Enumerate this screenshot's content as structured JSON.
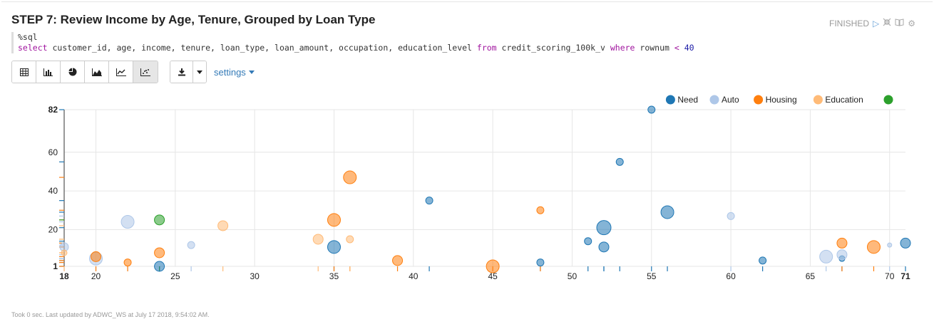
{
  "paragraph": {
    "title": "STEP 7: Review Income by Age, Tenure, Grouped by Loan Type",
    "status": "FINISHED",
    "code_line1": "%sql",
    "code_line2": {
      "select_kw": "select",
      "columns": " customer_id, age, income, tenure, loan_type, loan_amount, occupation, education_level ",
      "from_kw": "from",
      "table": " credit_scoring_100k_v ",
      "where_kw": "where",
      "cond": " rownum ",
      "op": "<",
      "value": " 40"
    },
    "settings_label": "settings",
    "footer": "Took 0 sec. Last updated by ADWC_WS at July 17 2018, 9:54:02 AM."
  },
  "toolbar_icons": [
    "table-icon",
    "bar-chart-icon",
    "pie-chart-icon",
    "area-chart-icon",
    "line-chart-icon",
    "scatter-chart-icon"
  ],
  "colors": {
    "Need": "#1f77b4",
    "Auto": "#aec7e8",
    "Housing": "#ff7f0e",
    "Education": "#ffbb78",
    "Fifth": "#2ca02c",
    "accent": "#337ab7"
  },
  "chart_data": {
    "type": "scatter",
    "xlim": [
      18,
      71
    ],
    "ylim": [
      1,
      82
    ],
    "x_ticks": [
      18,
      20,
      25,
      30,
      35,
      40,
      45,
      50,
      55,
      60,
      65,
      70,
      71
    ],
    "y_ticks": [
      1,
      20,
      40,
      60,
      82
    ],
    "legend_position": "top-right",
    "series": [
      {
        "name": "Need",
        "color": "#1f77b4",
        "points": [
          {
            "x": 24,
            "y": 1,
            "r": 7
          },
          {
            "x": 35,
            "y": 11,
            "r": 9
          },
          {
            "x": 41,
            "y": 35,
            "r": 5
          },
          {
            "x": 48,
            "y": 3,
            "r": 5
          },
          {
            "x": 51,
            "y": 14,
            "r": 5
          },
          {
            "x": 52,
            "y": 21,
            "r": 10
          },
          {
            "x": 52,
            "y": 11,
            "r": 7
          },
          {
            "x": 53,
            "y": 55,
            "r": 5
          },
          {
            "x": 55,
            "y": 82,
            "r": 5
          },
          {
            "x": 56,
            "y": 29,
            "r": 9
          },
          {
            "x": 62,
            "y": 4,
            "r": 5
          },
          {
            "x": 67,
            "y": 5,
            "r": 4
          },
          {
            "x": 71,
            "y": 13,
            "r": 7
          }
        ]
      },
      {
        "name": "Auto",
        "color": "#aec7e8",
        "points": [
          {
            "x": 18,
            "y": 11,
            "r": 6
          },
          {
            "x": 20,
            "y": 5,
            "r": 9
          },
          {
            "x": 22,
            "y": 24,
            "r": 9
          },
          {
            "x": 26,
            "y": 12,
            "r": 5
          },
          {
            "x": 60,
            "y": 27,
            "r": 5
          },
          {
            "x": 66,
            "y": 6,
            "r": 9
          },
          {
            "x": 67,
            "y": 7,
            "r": 7
          },
          {
            "x": 70,
            "y": 12,
            "r": 3
          }
        ]
      },
      {
        "name": "Housing",
        "color": "#ff7f0e",
        "points": [
          {
            "x": 20,
            "y": 6,
            "r": 7
          },
          {
            "x": 22,
            "y": 3,
            "r": 5
          },
          {
            "x": 24,
            "y": 8,
            "r": 7
          },
          {
            "x": 35,
            "y": 25,
            "r": 9
          },
          {
            "x": 36,
            "y": 47,
            "r": 9
          },
          {
            "x": 39,
            "y": 4,
            "r": 7
          },
          {
            "x": 45,
            "y": 1,
            "r": 9
          },
          {
            "x": 48,
            "y": 30,
            "r": 5
          },
          {
            "x": 67,
            "y": 13,
            "r": 7
          },
          {
            "x": 69,
            "y": 11,
            "r": 9
          }
        ]
      },
      {
        "name": "Education",
        "color": "#ffbb78",
        "points": [
          {
            "x": 18,
            "y": 8,
            "r": 4
          },
          {
            "x": 28,
            "y": 22,
            "r": 7
          },
          {
            "x": 34,
            "y": 15,
            "r": 7
          },
          {
            "x": 36,
            "y": 15,
            "r": 5
          }
        ]
      },
      {
        "name": "",
        "color": "#2ca02c",
        "points": [
          {
            "x": 24,
            "y": 25,
            "r": 7
          }
        ]
      }
    ]
  }
}
